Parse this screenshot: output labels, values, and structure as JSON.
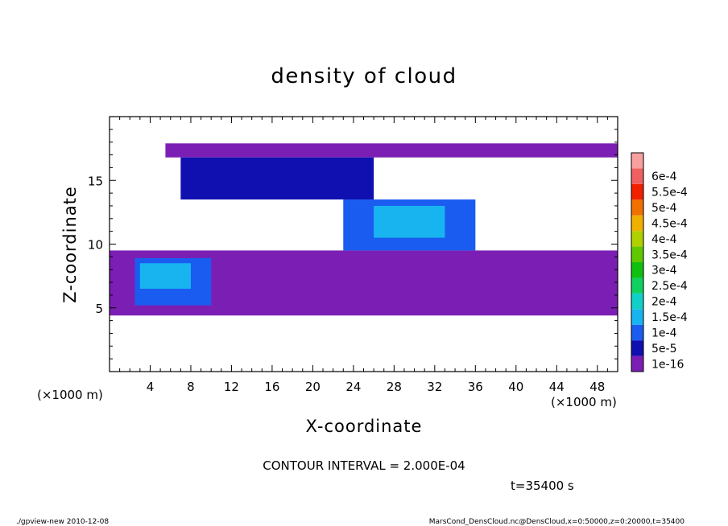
{
  "chart_data": {
    "type": "heatmap",
    "title": "density of cloud",
    "xlabel": "X-coordinate",
    "ylabel": "Z-coordinate",
    "x_unit": "(×1000 m)",
    "y_unit": "(×1000 m)",
    "xlim": [
      0,
      50
    ],
    "ylim": [
      0,
      20
    ],
    "x_ticks": [
      "4",
      "8",
      "12",
      "16",
      "20",
      "24",
      "28",
      "32",
      "36",
      "40",
      "44",
      "48"
    ],
    "y_ticks": [
      "5",
      "10",
      "15"
    ],
    "contour_note": "CONTOUR INTERVAL = 2.000E-04",
    "time_label": "t=35400 s",
    "colorbar": {
      "labels": [
        "1e-16",
        "5e-5",
        "1e-4",
        "1.5e-4",
        "2e-4",
        "2.5e-4",
        "3e-4",
        "3.5e-4",
        "4e-4",
        "4.5e-4",
        "5e-4",
        "5.5e-4",
        "6e-4"
      ],
      "colors": [
        "#7b1fb4",
        "#1010b0",
        "#1a5cf0",
        "#18b4f0",
        "#10d0c8",
        "#10d060",
        "#10c010",
        "#60c800",
        "#b0d000",
        "#f0b000",
        "#f07000",
        "#f02000",
        "#f06060",
        "#f8a0a0"
      ]
    },
    "regions": [
      {
        "level": "1e-16",
        "x": [
          5.5,
          50
        ],
        "z": [
          16.8,
          17.9
        ]
      },
      {
        "level": "1e-16",
        "x": [
          0,
          50
        ],
        "z": [
          4.4,
          9.5
        ]
      },
      {
        "level": "5e-5",
        "x": [
          7,
          26
        ],
        "z": [
          13.5,
          16.8
        ]
      },
      {
        "level": "1e-4",
        "x": [
          23,
          36
        ],
        "z": [
          9.5,
          13.5
        ]
      },
      {
        "level": "1.5e-4",
        "x": [
          26,
          33
        ],
        "z": [
          10.5,
          13.0
        ]
      },
      {
        "level": "1e-4",
        "x": [
          2.5,
          10
        ],
        "z": [
          5.2,
          8.9
        ]
      },
      {
        "level": "1.5e-4",
        "x": [
          3,
          8
        ],
        "z": [
          6.5,
          8.5
        ]
      }
    ]
  },
  "footer": {
    "left": "./gpview-new   2010-12-08",
    "right": "MarsCond_DensCloud.nc@DensCloud,x=0:50000,z=0:20000,t=35400"
  }
}
